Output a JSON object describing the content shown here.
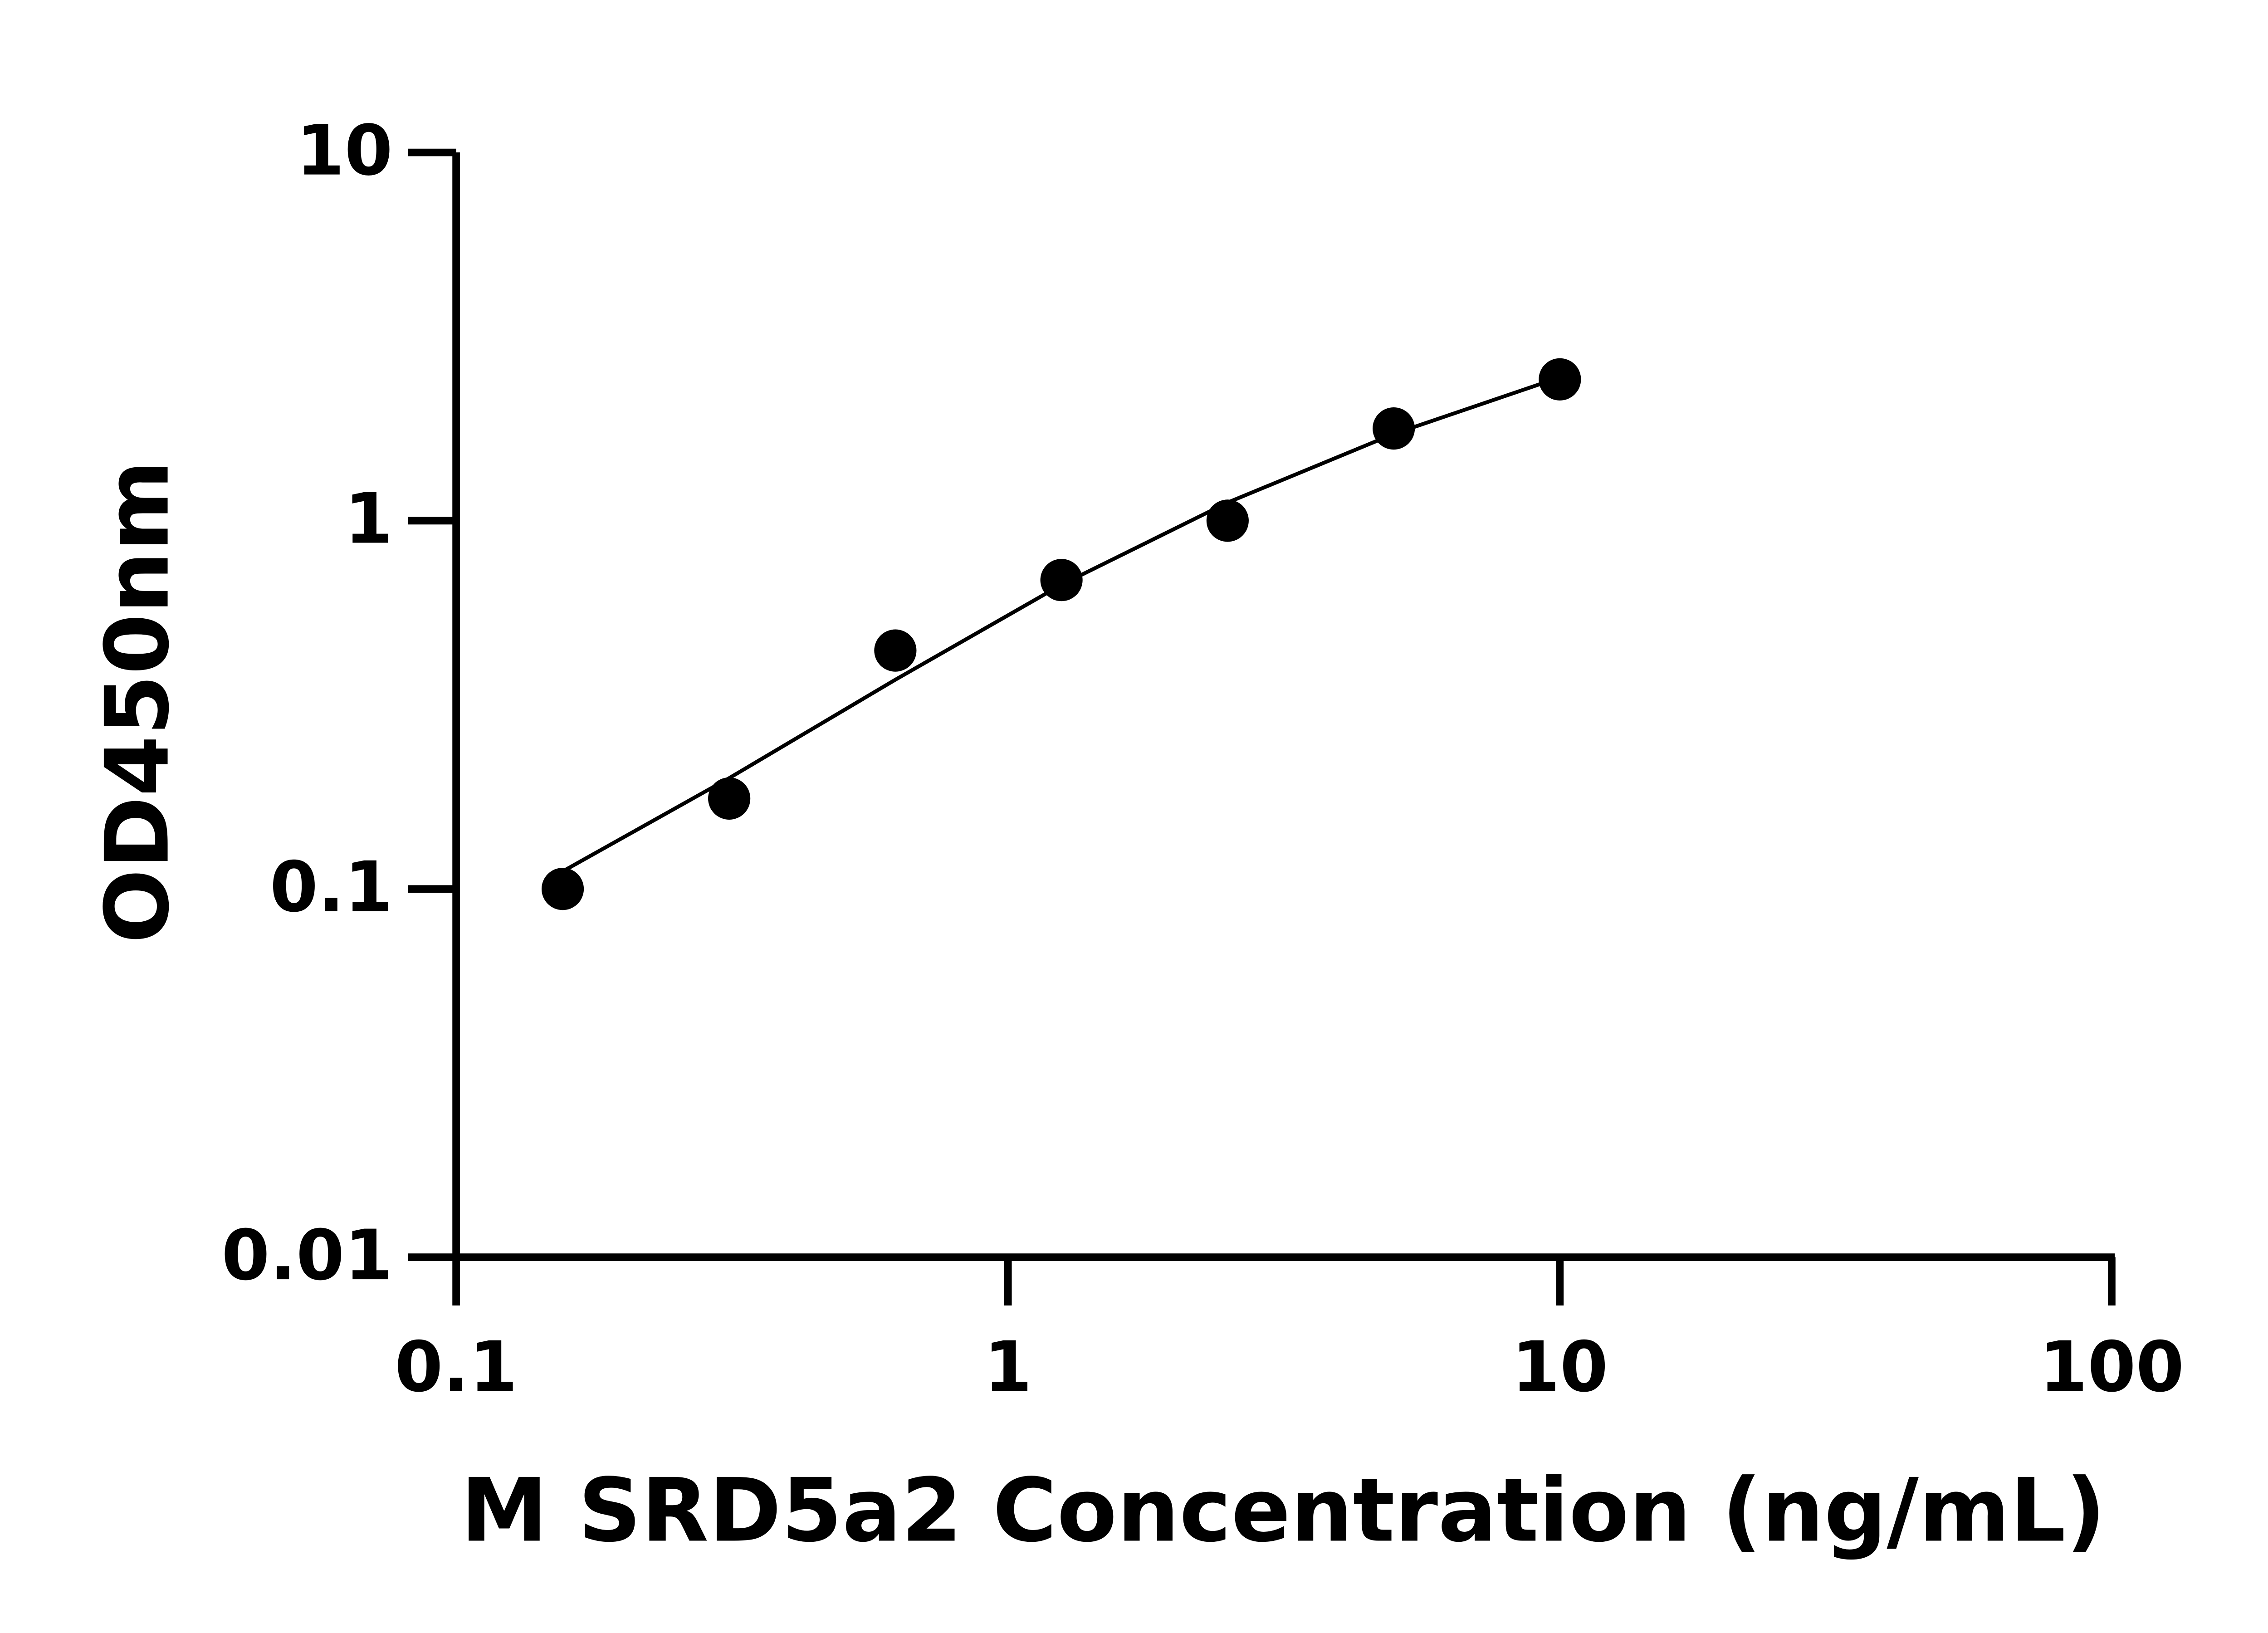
{
  "chart_data": {
    "type": "scatter",
    "x_label": "M SRD5a2 Concentration (ng/mL)",
    "y_label": "OD450nm",
    "xscale": "log",
    "yscale": "log",
    "xlim": [
      0.1,
      100
    ],
    "ylim": [
      0.01,
      10
    ],
    "xticks": [
      0.1,
      1,
      10,
      100
    ],
    "yticks": [
      0.01,
      0.1,
      1,
      10
    ],
    "color": "#000000",
    "x": [
      0.156,
      0.3125,
      0.625,
      1.25,
      2.5,
      5,
      10
    ],
    "values": [
      0.1,
      0.176,
      0.444,
      0.69,
      1.0,
      1.78,
      2.42
    ],
    "fit_curve": {
      "x": [
        0.15,
        0.3125,
        0.625,
        1.25,
        2.5,
        5,
        10
      ],
      "values": [
        0.108,
        0.2,
        0.37,
        0.67,
        1.12,
        1.72,
        2.45
      ]
    }
  }
}
